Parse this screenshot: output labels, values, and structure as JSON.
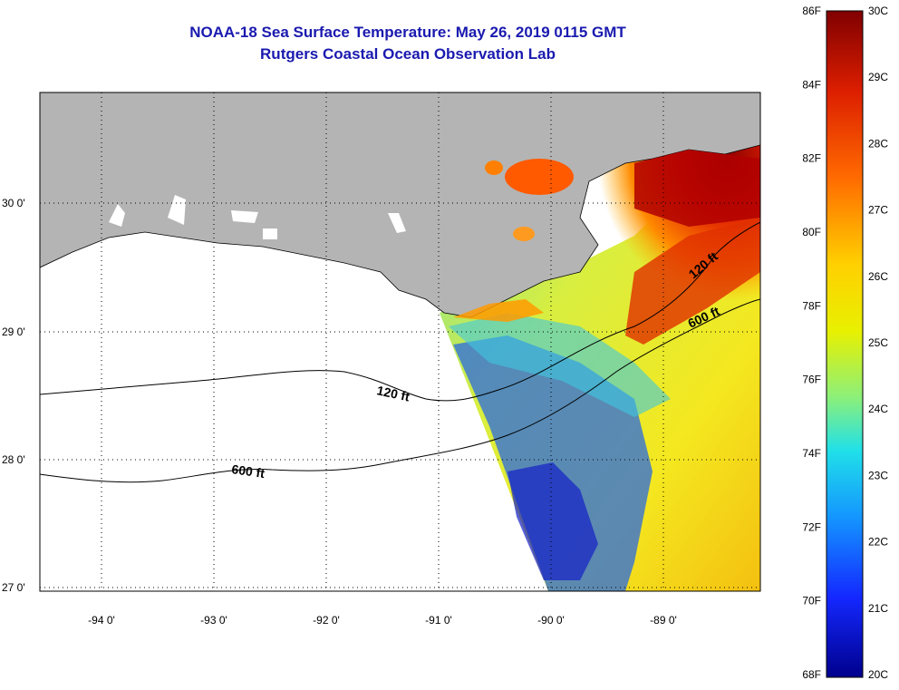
{
  "title": "NOAA-18 Sea Surface Temperature:  May 26, 2019 0115 GMT",
  "subtitle": "Rutgers Coastal Ocean Observation Lab",
  "lon_ticks": [
    "-94 0'",
    "-93 0'",
    "-92 0'",
    "-91 0'",
    "-90 0'",
    "-89 0'"
  ],
  "lat_ticks": [
    "30 0'",
    "29 0'",
    "28 0'",
    "27 0'"
  ],
  "colorbar": {
    "fahrenheit": [
      "86F",
      "84F",
      "82F",
      "80F",
      "78F",
      "76F",
      "74F",
      "72F",
      "70F",
      "68F"
    ],
    "celsius": [
      "30C",
      "29C",
      "28C",
      "27C",
      "26C",
      "25C",
      "24C",
      "23C",
      "22C",
      "21C",
      "20C"
    ]
  },
  "contours": {
    "shelf_label": "120 ft",
    "slope_label": "600 ft",
    "east_shelf_label": "120 ft",
    "east_slope_label": "600 ft"
  },
  "colors": {
    "title": "#1a1ab0",
    "land": "#b4b4b4",
    "no_data": "#ffffff"
  }
}
